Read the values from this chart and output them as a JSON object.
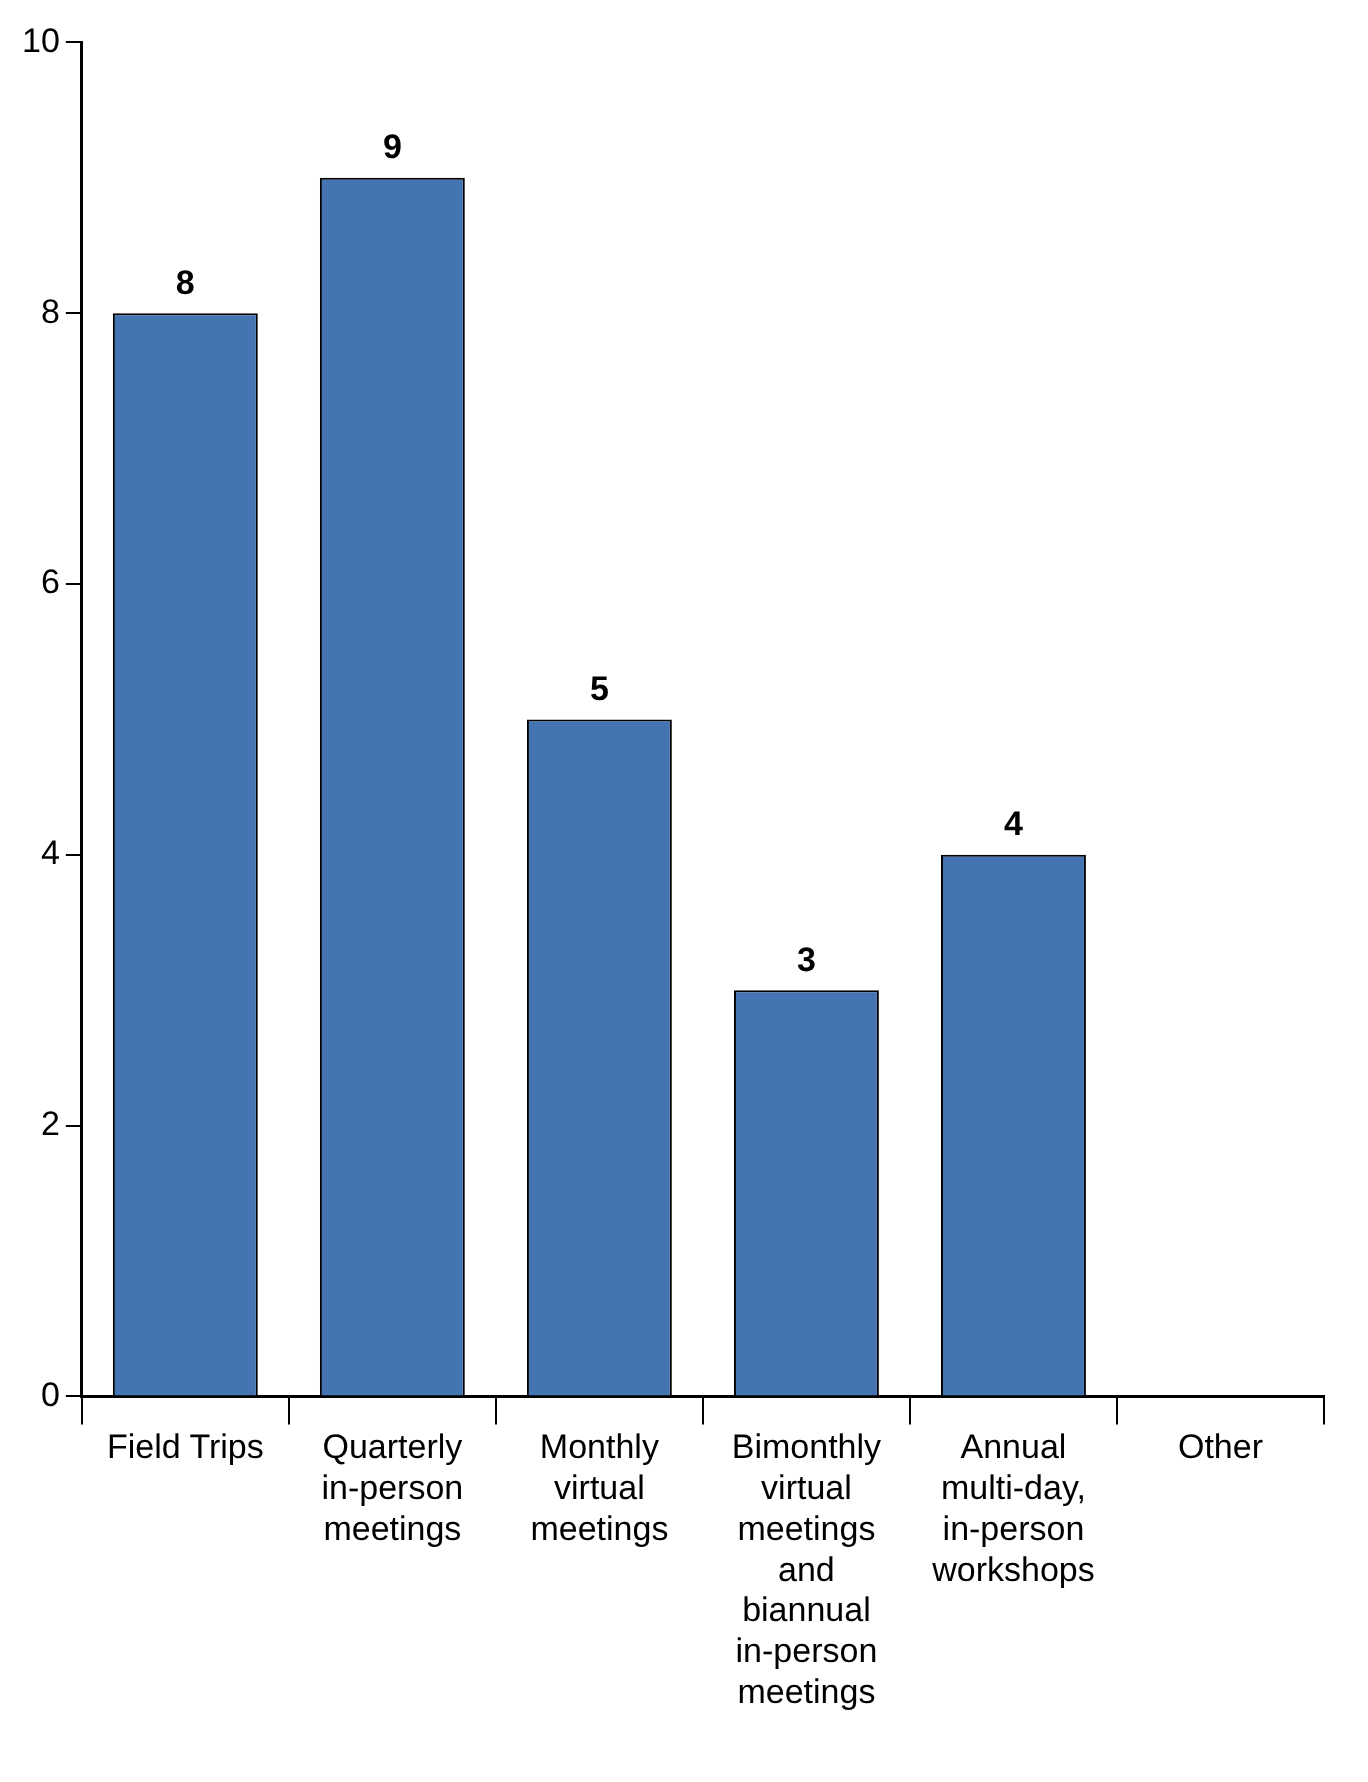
{
  "chart_data": {
    "type": "bar",
    "categories": [
      "Field Trips",
      "Quarterly in-person meetings",
      "Monthly virtual meetings",
      "Bimonthly virtual meetings and biannual in-person meetings",
      "Annual multi-day, in-person workshops",
      "Other"
    ],
    "values": [
      8,
      9,
      5,
      3,
      4,
      0
    ],
    "value_labels": [
      "8",
      "9",
      "5",
      "3",
      "4",
      null
    ],
    "color": "#4574b2",
    "ylim": [
      0,
      10
    ],
    "yticks": [
      0,
      2,
      4,
      6,
      8,
      10
    ],
    "grid": false,
    "legend": false
  }
}
